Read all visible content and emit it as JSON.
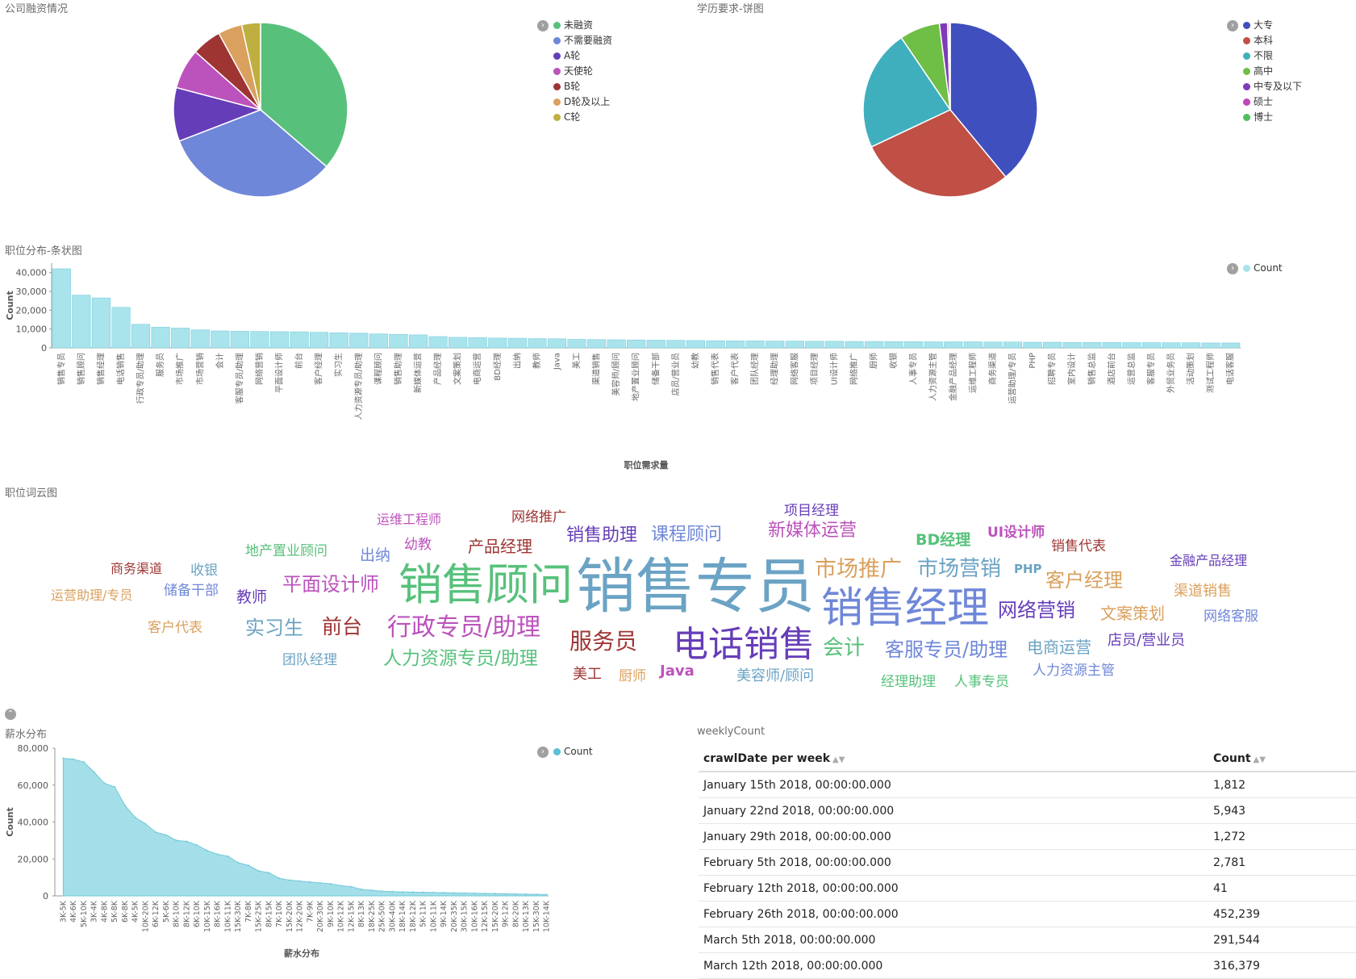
{
  "panels": {
    "funding_title": "公司融资情况",
    "education_title": "学历要求-饼图",
    "positions_title": "职位分布-条状图",
    "wordcloud_title": "职位词云图",
    "salary_title": "薪水分布",
    "weekly_title": "weeklyCount"
  },
  "legend_toggle_icon": "chevron-right-icon",
  "chart_data": [
    {
      "type": "pie",
      "id": "funding",
      "title": "公司融资情况",
      "categories": [
        "未融资",
        "不需要融资",
        "A轮",
        "天使轮",
        "B轮",
        "D轮及以上",
        "C轮"
      ],
      "values": [
        36.5,
        33.0,
        10.0,
        7.5,
        5.5,
        4.5,
        3.5
      ],
      "colors": [
        "#57c17b",
        "#6f87d8",
        "#663db8",
        "#bc52bc",
        "#9e3533",
        "#daa05d",
        "#bfaf40"
      ],
      "legend_position": "top-right"
    },
    {
      "type": "pie",
      "id": "education",
      "title": "学历要求-饼图",
      "categories": [
        "大专",
        "本科",
        "不限",
        "高中",
        "中专及以下",
        "硕士",
        "博士"
      ],
      "values": [
        39.0,
        29.0,
        22.5,
        7.5,
        1.5,
        0.3,
        0.2
      ],
      "colors": [
        "#3f4fbe",
        "#c04f45",
        "#3fafbe",
        "#6fbe45",
        "#7f3ab8",
        "#c045b8",
        "#4fbe5b"
      ],
      "legend_position": "top-right"
    },
    {
      "type": "bar",
      "id": "positions",
      "title": "职位分布-条状图",
      "xlabel": "职位需求量",
      "ylabel": "Count",
      "ylim": [
        0,
        45000
      ],
      "yticks": [
        "0",
        "10,000",
        "20,000",
        "30,000",
        "40,000"
      ],
      "ytick_values": [
        0,
        10000,
        20000,
        30000,
        40000
      ],
      "series_name": "Count",
      "color": "#a9e3ec",
      "stroke": "#7ccfdc",
      "categories": [
        "销售专员",
        "销售顾问",
        "销售经理",
        "电话销售",
        "行政专员/助理",
        "服务员",
        "市场推广",
        "市场营销",
        "会计",
        "客服专员/助理",
        "网络营销",
        "平面设计师",
        "前台",
        "客户经理",
        "实习生",
        "人力资源专员/助理",
        "课程顾问",
        "销售助理",
        "新媒体运营",
        "产品经理",
        "文案策划",
        "电商运营",
        "BD经理",
        "出纳",
        "教师",
        "Java",
        "美工",
        "渠道销售",
        "美容师/顾问",
        "地产置业顾问",
        "储备干部",
        "店员/营业员",
        "幼教",
        "销售代表",
        "客户代表",
        "团队经理",
        "经理助理",
        "网络客服",
        "项目经理",
        "UI设计师",
        "网络推广",
        "厨师",
        "收银",
        "人事专员",
        "人力资源主管",
        "金融产品经理",
        "运维工程师",
        "商务渠道",
        "运营助理/专员",
        "PHP",
        "招聘专员",
        "室内设计",
        "销售总监",
        "酒店前台",
        "运营总监",
        "客服专员",
        "外贸业务员",
        "活动策划",
        "测试工程师",
        "电话客服"
      ],
      "values": [
        42000,
        28000,
        26500,
        21500,
        12500,
        11000,
        10500,
        9500,
        9000,
        8800,
        8700,
        8600,
        8500,
        8300,
        8000,
        7800,
        7400,
        7200,
        6900,
        6000,
        5600,
        5400,
        5200,
        5100,
        4900,
        4800,
        4500,
        4400,
        4300,
        4200,
        4100,
        4000,
        3900,
        3800,
        3700,
        3700,
        3600,
        3600,
        3500,
        3500,
        3400,
        3400,
        3300,
        3300,
        3200,
        3200,
        3200,
        3100,
        3100,
        3000,
        3000,
        2900,
        2900,
        2900,
        2800,
        2800,
        2700,
        2700,
        2600,
        2600
      ]
    },
    {
      "type": "area",
      "id": "salary",
      "title": "薪水分布",
      "xlabel": "薪水分布",
      "ylabel": "Count",
      "ylim": [
        0,
        80000
      ],
      "yticks": [
        "0",
        "20,000",
        "40,000",
        "60,000",
        "80,000"
      ],
      "ytick_values": [
        0,
        20000,
        40000,
        60000,
        80000
      ],
      "series_name": "Count",
      "color": "#a4dfe9",
      "stroke": "#6fc8d8",
      "categories": [
        "3K-5K",
        "4K-6K",
        "5K-10K",
        "3K-4K",
        "4K-8K",
        "5K-8K",
        "6K-8K",
        "4K-5K",
        "10K-20K",
        "6K-12K",
        "5K-6K",
        "8K-10K",
        "8K-12K",
        "6K-10K",
        "10K-15K",
        "8K-16K",
        "10K-11K",
        "15K-30K",
        "7K-8K",
        "15K-25K",
        "8K-15K",
        "7K-10K",
        "15K-20K",
        "12K-20K",
        "7K-9K",
        "20K-30K",
        "9K-10K",
        "10K-12K",
        "12K-15K",
        "8K-13K",
        "18K-25K",
        "25K-50K",
        "30K-40K",
        "18K-14K",
        "18K-12K",
        "5K-11K",
        "10K-11K",
        "9K-14K",
        "20K-35K",
        "30K-15K",
        "10K-16K",
        "12K-15K",
        "15K-20K",
        "9K-12K",
        "8K-20K",
        "10K-13K",
        "15K-30K",
        "10K-14K"
      ],
      "values": [
        74500,
        74000,
        72500,
        67000,
        61000,
        59000,
        49000,
        42500,
        39000,
        34500,
        33000,
        30000,
        29500,
        27500,
        24500,
        22500,
        21500,
        18000,
        16500,
        13500,
        12500,
        9500,
        8500,
        8000,
        7500,
        7000,
        6500,
        5500,
        5000,
        3500,
        3000,
        2500,
        2300,
        2100,
        2000,
        1900,
        1800,
        1700,
        1600,
        1500,
        1400,
        1300,
        1200,
        1100,
        1000,
        900,
        800,
        700
      ]
    },
    {
      "type": "table",
      "id": "weekly",
      "title": "weeklyCount",
      "columns": [
        "crawlDate per week",
        "Count"
      ],
      "rows": [
        [
          "January 15th 2018, 00:00:00.000",
          "1,812"
        ],
        [
          "January 22nd 2018, 00:00:00.000",
          "5,943"
        ],
        [
          "January 29th 2018, 00:00:00.000",
          "1,272"
        ],
        [
          "February 5th 2018, 00:00:00.000",
          "2,781"
        ],
        [
          "February 12th 2018, 00:00:00.000",
          "41"
        ],
        [
          "February 26th 2018, 00:00:00.000",
          "452,239"
        ],
        [
          "March 5th 2018, 00:00:00.000",
          "291,544"
        ],
        [
          "March 12th 2018, 00:00:00.000",
          "316,379"
        ]
      ]
    }
  ],
  "wordcloud": [
    {
      "text": "销售专员",
      "color": "#6ba3c4",
      "size": 74
    },
    {
      "text": "销售顾问",
      "color": "#57c17b",
      "size": 54
    },
    {
      "text": "销售经理",
      "color": "#6f87d8",
      "size": 52
    },
    {
      "text": "电话销售",
      "color": "#663db8",
      "size": 44
    },
    {
      "text": "行政专员/助理",
      "color": "#bc52bc",
      "size": 30
    },
    {
      "text": "服务员",
      "color": "#9e3533",
      "size": 28
    },
    {
      "text": "市场推广",
      "color": "#daa05d",
      "size": 27
    },
    {
      "text": "市场营销",
      "color": "#6ba3c4",
      "size": 26
    },
    {
      "text": "会计",
      "color": "#57c17b",
      "size": 26
    },
    {
      "text": "客服专员/助理",
      "color": "#6f87d8",
      "size": 24
    },
    {
      "text": "网络营销",
      "color": "#663db8",
      "size": 24
    },
    {
      "text": "平面设计师",
      "color": "#bc52bc",
      "size": 24
    },
    {
      "text": "前台",
      "color": "#9e3533",
      "size": 25
    },
    {
      "text": "客户经理",
      "color": "#daa05d",
      "size": 24
    },
    {
      "text": "实习生",
      "color": "#6ba3c4",
      "size": 24
    },
    {
      "text": "人力资源专员/助理",
      "color": "#57c17b",
      "size": 23
    },
    {
      "text": "课程顾问",
      "color": "#6f87d8",
      "size": 22
    },
    {
      "text": "销售助理",
      "color": "#663db8",
      "size": 22
    },
    {
      "text": "新媒体运营",
      "color": "#bc52bc",
      "size": 22
    },
    {
      "text": "产品经理",
      "color": "#9e3533",
      "size": 20
    },
    {
      "text": "文案策划",
      "color": "#daa05d",
      "size": 20
    },
    {
      "text": "电商运营",
      "color": "#6ba3c4",
      "size": 20
    },
    {
      "text": "BD经理",
      "color": "#57c17b",
      "size": 19
    },
    {
      "text": "出纳",
      "color": "#6f87d8",
      "size": 19
    },
    {
      "text": "教师",
      "color": "#663db8",
      "size": 19
    },
    {
      "text": "Java",
      "color": "#bc52bc",
      "size": 18
    },
    {
      "text": "美工",
      "color": "#9e3533",
      "size": 18
    },
    {
      "text": "渠道销售",
      "color": "#daa05d",
      "size": 18
    },
    {
      "text": "美容师/顾问",
      "color": "#6ba3c4",
      "size": 18
    },
    {
      "text": "地产置业顾问",
      "color": "#57c17b",
      "size": 17
    },
    {
      "text": "储备干部",
      "color": "#6f87d8",
      "size": 17
    },
    {
      "text": "店员/营业员",
      "color": "#663db8",
      "size": 18
    },
    {
      "text": "幼教",
      "color": "#bc52bc",
      "size": 17
    },
    {
      "text": "销售代表",
      "color": "#9e3533",
      "size": 17
    },
    {
      "text": "客户代表",
      "color": "#daa05d",
      "size": 17
    },
    {
      "text": "团队经理",
      "color": "#6ba3c4",
      "size": 17
    },
    {
      "text": "经理助理",
      "color": "#57c17b",
      "size": 17
    },
    {
      "text": "网络客服",
      "color": "#6f87d8",
      "size": 17
    },
    {
      "text": "项目经理",
      "color": "#663db8",
      "size": 17
    },
    {
      "text": "UI设计师",
      "color": "#bc52bc",
      "size": 17
    },
    {
      "text": "网络推广",
      "color": "#9e3533",
      "size": 17
    },
    {
      "text": "厨师",
      "color": "#daa05d",
      "size": 17
    },
    {
      "text": "收银",
      "color": "#6ba3c4",
      "size": 17
    },
    {
      "text": "人事专员",
      "color": "#57c17b",
      "size": 17
    },
    {
      "text": "人力资源主管",
      "color": "#6f87d8",
      "size": 17
    },
    {
      "text": "金融产品经理",
      "color": "#663db8",
      "size": 16
    },
    {
      "text": "运维工程师",
      "color": "#bc52bc",
      "size": 16
    },
    {
      "text": "商务渠道",
      "color": "#9e3533",
      "size": 16
    },
    {
      "text": "运营助理/专员",
      "color": "#daa05d",
      "size": 16
    },
    {
      "text": "PHP",
      "color": "#6ba3c4",
      "size": 15
    }
  ]
}
